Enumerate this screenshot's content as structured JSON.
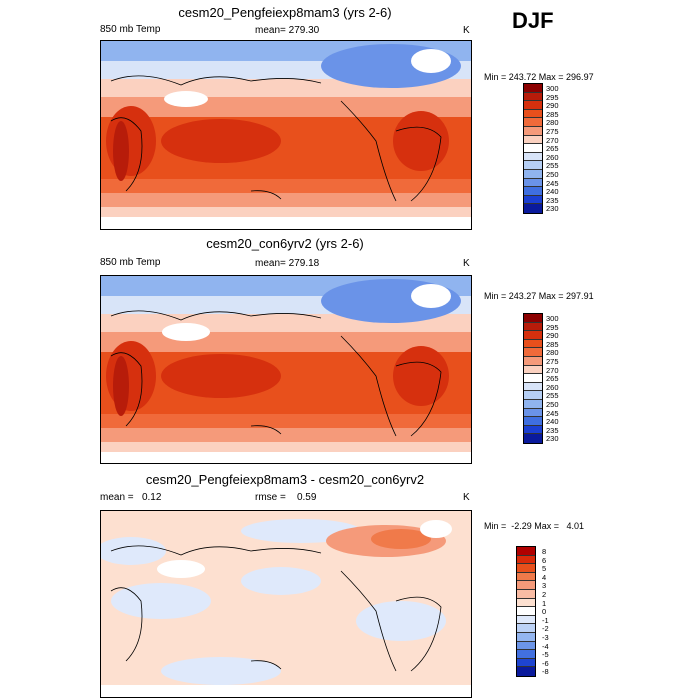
{
  "season": "DJF",
  "chart_data": [
    {
      "type": "heatmap",
      "title": "cesm20_Pengfeiexp8mam3 (yrs 2-6)",
      "left_label": "850 mb Temp",
      "center_label": "mean= 279.30",
      "units": "K",
      "min_max": "Min = 243.72 Max = 296.97",
      "min": 243.72,
      "max": 296.97,
      "mean": 279.3,
      "levels": [
        "300",
        "295",
        "290",
        "285",
        "280",
        "275",
        "270",
        "265",
        "260",
        "255",
        "250",
        "245",
        "240",
        "235",
        "230"
      ],
      "colors": [
        "#8b0000",
        "#b71c0a",
        "#d6300e",
        "#e8501c",
        "#f06a3a",
        "#f59a7a",
        "#fbd1c0",
        "#ffffff",
        "#d8e4f8",
        "#b6cff5",
        "#90b4ef",
        "#6a93e8",
        "#3f6fe0",
        "#1b3fd2",
        "#0a1a9c"
      ]
    },
    {
      "type": "heatmap",
      "title": "cesm20_con6yrv2 (yrs 2-6)",
      "left_label": "850 mb Temp",
      "center_label": "mean= 279.18",
      "units": "K",
      "min_max": "Min = 243.27 Max = 297.91",
      "min": 243.27,
      "max": 297.91,
      "mean": 279.18,
      "levels": [
        "300",
        "295",
        "290",
        "285",
        "280",
        "275",
        "270",
        "265",
        "260",
        "255",
        "250",
        "245",
        "240",
        "235",
        "230"
      ],
      "colors": [
        "#8b0000",
        "#b71c0a",
        "#d6300e",
        "#e8501c",
        "#f06a3a",
        "#f59a7a",
        "#fbd1c0",
        "#ffffff",
        "#d8e4f8",
        "#b6cff5",
        "#90b4ef",
        "#6a93e8",
        "#3f6fe0",
        "#1b3fd2",
        "#0a1a9c"
      ]
    },
    {
      "type": "heatmap",
      "title": "cesm20_Pengfeiexp8mam3 - cesm20_con6yrv2",
      "left_label": "mean =   0.12",
      "center_label": "rmse =    0.59",
      "units": "K",
      "min_max": "Min =  -2.29 Max =   4.01",
      "min": -2.29,
      "max": 4.01,
      "mean": 0.12,
      "rmse": 0.59,
      "levels": [
        "8",
        "6",
        "5",
        "4",
        "3",
        "2",
        "1",
        "0",
        "-1",
        "-2",
        "-3",
        "-4",
        "-5",
        "-6",
        "-8"
      ],
      "colors": [
        "#b00000",
        "#d92a0a",
        "#e8501c",
        "#f07a4a",
        "#f59a7a",
        "#f9bca4",
        "#fde0d0",
        "#ffffff",
        "#dfe9fb",
        "#bcd2f6",
        "#94b6f0",
        "#6c95e8",
        "#4270e0",
        "#1e44d0",
        "#0a1a9c"
      ]
    }
  ]
}
